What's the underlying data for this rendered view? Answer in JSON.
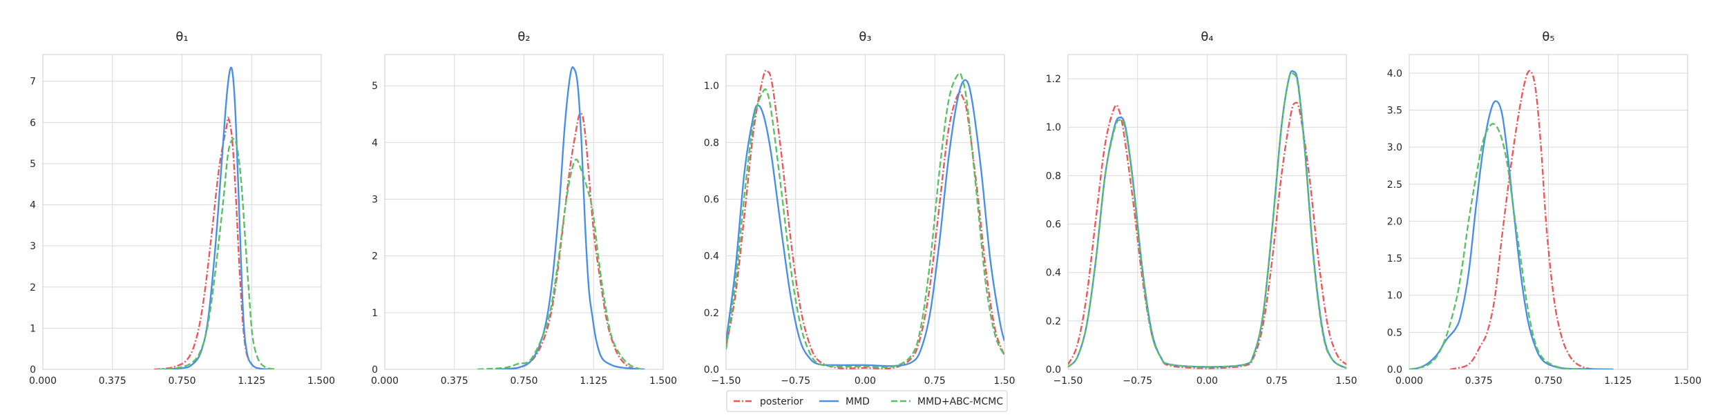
{
  "colors": {
    "posterior": "#e8585a",
    "mmd": "#4a8fe6",
    "mmd_abc": "#5bc065",
    "grid": "#d9d9d9",
    "frame": "#cccccc"
  },
  "legend": {
    "placement": "bottom-center",
    "items": [
      {
        "label": "posterior",
        "style": "dashdot",
        "color": "#e8585a"
      },
      {
        "label": "MMD",
        "style": "solid",
        "color": "#4a8fe6"
      },
      {
        "label": "MMD+ABC-MCMC",
        "style": "dashed",
        "color": "#5bc065"
      }
    ]
  },
  "chart_data": [
    {
      "type": "line",
      "title": "θ₁",
      "xlim": [
        0,
        1.5
      ],
      "ylim": [
        0,
        7.65
      ],
      "xticks": [
        0.0,
        0.375,
        0.75,
        1.125,
        1.5
      ],
      "xtick_labels": [
        "0.000",
        "0.375",
        "0.750",
        "1.125",
        "1.500"
      ],
      "yticks": [
        0,
        1,
        2,
        3,
        4,
        5,
        6,
        7
      ],
      "ytick_labels": [
        "0",
        "1",
        "2",
        "3",
        "4",
        "5",
        "6",
        "7"
      ],
      "grid": true,
      "series": [
        {
          "name": "posterior",
          "style": "dashdot",
          "x": [
            0.6,
            0.7,
            0.78,
            0.83,
            0.87,
            0.91,
            0.95,
            0.99,
            1.0,
            1.02,
            1.04,
            1.06,
            1.08,
            1.1,
            1.13,
            1.16,
            1.2
          ],
          "y": [
            0,
            0.05,
            0.25,
            0.8,
            1.8,
            3.3,
            4.9,
            5.9,
            6.1,
            5.6,
            4.2,
            2.4,
            1.0,
            0.35,
            0.1,
            0.02,
            0
          ]
        },
        {
          "name": "MMD",
          "style": "solid",
          "x": [
            0.65,
            0.75,
            0.8,
            0.85,
            0.89,
            0.93,
            0.96,
            0.99,
            1.01,
            1.025,
            1.04,
            1.06,
            1.08,
            1.1,
            1.13,
            1.17,
            1.22
          ],
          "y": [
            0,
            0.03,
            0.1,
            0.4,
            1.2,
            3.0,
            4.8,
            6.6,
            7.3,
            7.1,
            6.0,
            3.6,
            1.3,
            0.4,
            0.1,
            0.02,
            0
          ]
        },
        {
          "name": "MMD+ABC-MCMC",
          "style": "dashed",
          "x": [
            0.62,
            0.72,
            0.8,
            0.85,
            0.89,
            0.93,
            0.97,
            1.0,
            1.03,
            1.05,
            1.07,
            1.09,
            1.11,
            1.13,
            1.16,
            1.2,
            1.26
          ],
          "y": [
            0,
            0.03,
            0.15,
            0.45,
            1.1,
            2.4,
            4.0,
            5.3,
            5.6,
            5.3,
            4.5,
            3.2,
            1.9,
            0.8,
            0.25,
            0.05,
            0
          ]
        }
      ]
    },
    {
      "type": "line",
      "title": "θ₂",
      "xlim": [
        0,
        1.5
      ],
      "ylim": [
        0,
        5.55
      ],
      "xticks": [
        0.0,
        0.375,
        0.75,
        1.125,
        1.5
      ],
      "xtick_labels": [
        "0.000",
        "0.375",
        "0.750",
        "1.125",
        "1.500"
      ],
      "yticks": [
        0,
        1,
        2,
        3,
        4,
        5
      ],
      "ytick_labels": [
        "0",
        "1",
        "2",
        "3",
        "4",
        "5"
      ],
      "grid": true,
      "series": [
        {
          "name": "posterior",
          "style": "dashdot",
          "x": [
            0.55,
            0.7,
            0.78,
            0.84,
            0.89,
            0.93,
            0.97,
            1.0,
            1.03,
            1.05,
            1.07,
            1.09,
            1.11,
            1.13,
            1.16,
            1.2,
            1.25,
            1.3,
            1.35
          ],
          "y": [
            0,
            0.02,
            0.12,
            0.4,
            0.9,
            1.7,
            2.8,
            3.6,
            4.2,
            4.5,
            4.4,
            3.8,
            3.0,
            2.3,
            1.6,
            0.8,
            0.3,
            0.08,
            0
          ]
        },
        {
          "name": "MMD",
          "style": "solid",
          "x": [
            0.6,
            0.72,
            0.8,
            0.86,
            0.9,
            0.94,
            0.97,
            1.0,
            1.02,
            1.04,
            1.06,
            1.08,
            1.1,
            1.12,
            1.14,
            1.17,
            1.22,
            1.28,
            1.4
          ],
          "y": [
            0,
            0.03,
            0.2,
            0.7,
            1.5,
            2.9,
            4.3,
            5.2,
            5.3,
            5.0,
            4.0,
            2.5,
            1.4,
            0.9,
            0.5,
            0.2,
            0.08,
            0.03,
            0
          ]
        },
        {
          "name": "MMD+ABC-MCMC",
          "style": "dashed",
          "x": [
            0.5,
            0.65,
            0.72,
            0.78,
            0.84,
            0.89,
            0.93,
            0.97,
            1.0,
            1.03,
            1.06,
            1.09,
            1.12,
            1.15,
            1.18,
            1.22,
            1.27,
            1.32,
            1.38
          ],
          "y": [
            0,
            0.03,
            0.1,
            0.15,
            0.5,
            1.0,
            1.8,
            2.8,
            3.4,
            3.7,
            3.5,
            3.2,
            2.8,
            2.0,
            1.3,
            0.6,
            0.25,
            0.08,
            0
          ]
        }
      ]
    },
    {
      "type": "line",
      "title": "θ₃",
      "xlim": [
        -1.5,
        1.5
      ],
      "ylim": [
        0,
        1.11
      ],
      "xticks": [
        -1.5,
        -0.75,
        0.0,
        0.75,
        1.5
      ],
      "xtick_labels": [
        "−1.50",
        "−0.75",
        "0.00",
        "0.75",
        "1.50"
      ],
      "yticks": [
        0,
        0.2,
        0.4,
        0.6,
        0.8,
        1.0
      ],
      "ytick_labels": [
        "0.0",
        "0.2",
        "0.4",
        "0.6",
        "0.8",
        "1.0"
      ],
      "grid": true,
      "series": [
        {
          "name": "posterior",
          "style": "dashdot",
          "x": [
            -1.5,
            -1.4,
            -1.3,
            -1.2,
            -1.1,
            -1.05,
            -1.0,
            -0.9,
            -0.8,
            -0.7,
            -0.6,
            -0.5,
            -0.3,
            0.0,
            0.3,
            0.5,
            0.6,
            0.7,
            0.8,
            0.9,
            1.0,
            1.05,
            1.1,
            1.2,
            1.3,
            1.4,
            1.5
          ],
          "y": [
            0.08,
            0.26,
            0.55,
            0.85,
            1.03,
            1.05,
            1.0,
            0.75,
            0.45,
            0.22,
            0.09,
            0.03,
            0.005,
            0.005,
            0.005,
            0.04,
            0.12,
            0.3,
            0.58,
            0.85,
            0.97,
            0.96,
            0.9,
            0.65,
            0.35,
            0.14,
            0.05
          ]
        },
        {
          "name": "MMD",
          "style": "solid",
          "x": [
            -1.5,
            -1.4,
            -1.3,
            -1.2,
            -1.15,
            -1.1,
            -1.05,
            -1.0,
            -0.9,
            -0.8,
            -0.7,
            -0.6,
            -0.5,
            -0.3,
            0.0,
            0.3,
            0.5,
            0.6,
            0.7,
            0.8,
            0.9,
            1.0,
            1.08,
            1.15,
            1.25,
            1.35,
            1.45,
            1.5
          ],
          "y": [
            0.1,
            0.35,
            0.7,
            0.9,
            0.93,
            0.9,
            0.83,
            0.73,
            0.48,
            0.25,
            0.1,
            0.04,
            0.018,
            0.015,
            0.015,
            0.012,
            0.025,
            0.07,
            0.2,
            0.45,
            0.75,
            0.96,
            1.02,
            0.95,
            0.7,
            0.38,
            0.17,
            0.1
          ]
        },
        {
          "name": "MMD+ABC-MCMC",
          "style": "dashed",
          "x": [
            -1.5,
            -1.4,
            -1.3,
            -1.2,
            -1.1,
            -1.05,
            -1.0,
            -0.9,
            -0.8,
            -0.7,
            -0.6,
            -0.5,
            -0.3,
            0.0,
            0.3,
            0.5,
            0.6,
            0.7,
            0.8,
            0.9,
            1.0,
            1.05,
            1.1,
            1.2,
            1.3,
            1.4,
            1.5
          ],
          "y": [
            0.07,
            0.3,
            0.62,
            0.88,
            0.98,
            0.97,
            0.88,
            0.62,
            0.35,
            0.16,
            0.06,
            0.02,
            0.01,
            0.01,
            0.01,
            0.05,
            0.15,
            0.38,
            0.7,
            0.95,
            1.04,
            1.02,
            0.93,
            0.62,
            0.3,
            0.12,
            0.05
          ]
        }
      ]
    },
    {
      "type": "line",
      "title": "θ₄",
      "xlim": [
        -1.5,
        1.5
      ],
      "ylim": [
        0,
        1.3
      ],
      "xticks": [
        -1.5,
        -0.75,
        0.0,
        0.75,
        1.5
      ],
      "xtick_labels": [
        "−1.50",
        "−0.75",
        "0.00",
        "0.75",
        "1.50"
      ],
      "yticks": [
        0,
        0.2,
        0.4,
        0.6,
        0.8,
        1.0,
        1.2
      ],
      "ytick_labels": [
        "0.0",
        "0.2",
        "0.4",
        "0.6",
        "0.8",
        "1.0",
        "1.2"
      ],
      "grid": true,
      "series": [
        {
          "name": "posterior",
          "style": "dashdot",
          "x": [
            -1.5,
            -1.4,
            -1.3,
            -1.2,
            -1.1,
            -1.0,
            -0.95,
            -0.9,
            -0.8,
            -0.7,
            -0.6,
            -0.5,
            -0.4,
            0.0,
            0.4,
            0.5,
            0.6,
            0.7,
            0.8,
            0.9,
            0.95,
            1.0,
            1.1,
            1.2,
            1.3,
            1.4,
            1.5
          ],
          "y": [
            0.02,
            0.1,
            0.3,
            0.62,
            0.93,
            1.08,
            1.07,
            0.98,
            0.7,
            0.38,
            0.15,
            0.05,
            0.015,
            0.005,
            0.015,
            0.05,
            0.18,
            0.45,
            0.8,
            1.05,
            1.1,
            1.06,
            0.8,
            0.45,
            0.18,
            0.06,
            0.02
          ]
        },
        {
          "name": "MMD",
          "style": "solid",
          "x": [
            -1.5,
            -1.4,
            -1.3,
            -1.2,
            -1.1,
            -1.0,
            -0.94,
            -0.88,
            -0.8,
            -0.7,
            -0.6,
            -0.5,
            -0.4,
            0.0,
            0.4,
            0.5,
            0.6,
            0.7,
            0.8,
            0.88,
            0.93,
            0.98,
            1.05,
            1.15,
            1.25,
            1.35,
            1.5
          ],
          "y": [
            0.01,
            0.05,
            0.18,
            0.45,
            0.8,
            1.0,
            1.04,
            1.0,
            0.78,
            0.42,
            0.16,
            0.05,
            0.02,
            0.01,
            0.02,
            0.06,
            0.22,
            0.58,
            1.0,
            1.2,
            1.23,
            1.18,
            0.92,
            0.45,
            0.15,
            0.04,
            0.005
          ]
        },
        {
          "name": "MMD+ABC-MCMC",
          "style": "dashed",
          "x": [
            -1.5,
            -1.4,
            -1.3,
            -1.2,
            -1.1,
            -1.0,
            -0.94,
            -0.88,
            -0.8,
            -0.7,
            -0.6,
            -0.5,
            -0.4,
            0.0,
            0.4,
            0.5,
            0.6,
            0.7,
            0.8,
            0.88,
            0.93,
            0.98,
            1.05,
            1.15,
            1.25,
            1.35,
            1.5
          ],
          "y": [
            0.01,
            0.05,
            0.18,
            0.45,
            0.8,
            0.99,
            1.03,
            0.99,
            0.77,
            0.41,
            0.15,
            0.05,
            0.02,
            0.01,
            0.02,
            0.06,
            0.22,
            0.58,
            1.0,
            1.2,
            1.22,
            1.17,
            0.91,
            0.44,
            0.14,
            0.04,
            0.005
          ]
        }
      ]
    },
    {
      "type": "line",
      "title": "θ₅",
      "xlim": [
        0,
        1.5
      ],
      "ylim": [
        0,
        4.25
      ],
      "xticks": [
        0.0,
        0.375,
        0.75,
        1.125,
        1.5
      ],
      "xtick_labels": [
        "0.000",
        "0.375",
        "0.750",
        "1.125",
        "1.500"
      ],
      "yticks": [
        0,
        0.5,
        1.0,
        1.5,
        2.0,
        2.5,
        3.0,
        3.5,
        4.0
      ],
      "ytick_labels": [
        "0.0",
        "0.5",
        "1.0",
        "1.5",
        "2.0",
        "2.5",
        "3.0",
        "3.5",
        "4.0"
      ],
      "grid": true,
      "series": [
        {
          "name": "posterior",
          "style": "dashdot",
          "x": [
            0.22,
            0.3,
            0.34,
            0.38,
            0.42,
            0.46,
            0.5,
            0.54,
            0.58,
            0.62,
            0.65,
            0.68,
            0.71,
            0.74,
            0.78,
            0.82,
            0.86,
            0.9,
            0.95,
            1.0
          ],
          "y": [
            0,
            0.04,
            0.12,
            0.3,
            0.5,
            0.95,
            1.8,
            2.6,
            3.3,
            3.85,
            4.03,
            3.8,
            3.0,
            1.9,
            0.95,
            0.45,
            0.2,
            0.08,
            0.02,
            0
          ]
        },
        {
          "name": "MMD",
          "style": "solid",
          "x": [
            0.0,
            0.05,
            0.1,
            0.15,
            0.2,
            0.25,
            0.28,
            0.32,
            0.36,
            0.4,
            0.44,
            0.47,
            0.5,
            0.53,
            0.56,
            0.6,
            0.64,
            0.68,
            0.72,
            0.78,
            0.85,
            0.95,
            1.1
          ],
          "y": [
            0,
            0.02,
            0.08,
            0.2,
            0.4,
            0.55,
            0.75,
            1.3,
            2.2,
            3.0,
            3.5,
            3.62,
            3.45,
            2.9,
            2.2,
            1.3,
            0.65,
            0.3,
            0.12,
            0.04,
            0.01,
            0.005,
            0
          ]
        },
        {
          "name": "MMD+ABC-MCMC",
          "style": "dashed",
          "x": [
            0.0,
            0.05,
            0.1,
            0.15,
            0.2,
            0.25,
            0.28,
            0.32,
            0.36,
            0.4,
            0.44,
            0.47,
            0.5,
            0.53,
            0.56,
            0.6,
            0.64,
            0.68,
            0.72,
            0.78,
            0.85,
            0.95
          ],
          "y": [
            0,
            0.02,
            0.06,
            0.18,
            0.45,
            0.9,
            1.3,
            2.0,
            2.6,
            3.1,
            3.3,
            3.28,
            3.1,
            2.75,
            2.2,
            1.5,
            0.8,
            0.35,
            0.15,
            0.05,
            0.01,
            0
          ]
        }
      ]
    }
  ]
}
